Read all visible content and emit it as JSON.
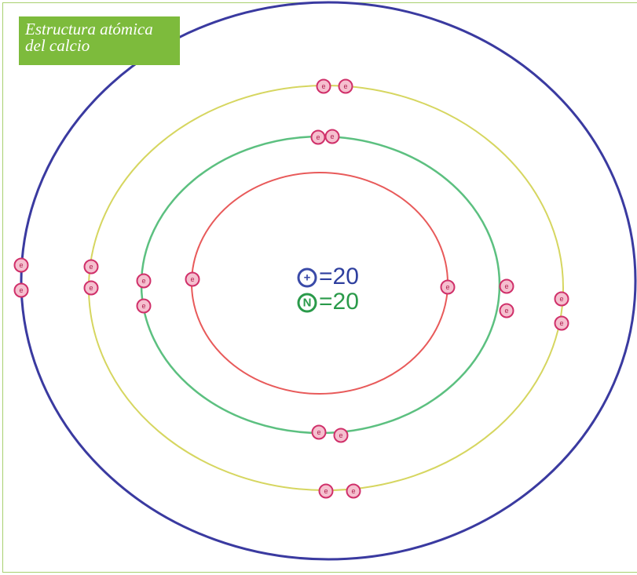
{
  "title": {
    "lines": [
      "Estructura atómica",
      "del calcio"
    ]
  },
  "nucleus": {
    "protons": {
      "symbol": "+",
      "text": "=20"
    },
    "neutrons": {
      "symbol": "N",
      "text": "=20"
    }
  },
  "electron_label": "e"
}
